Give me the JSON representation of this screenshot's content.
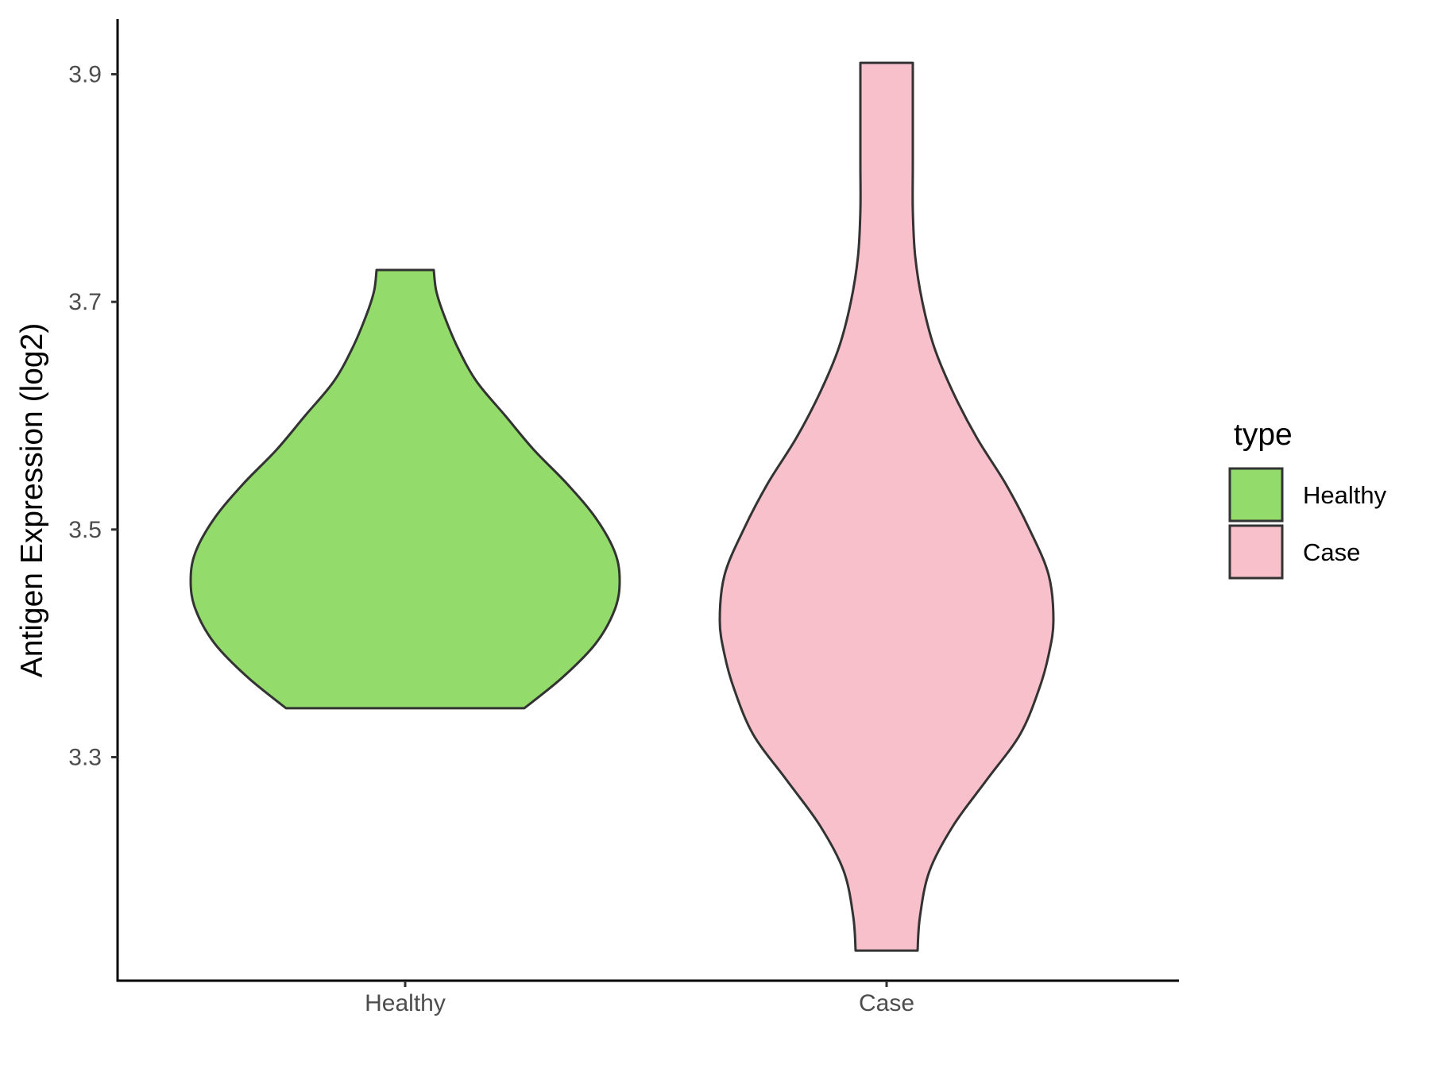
{
  "chart_data": {
    "type": "violin",
    "title": "",
    "xlabel": "",
    "ylabel": "Antigen Expression (log2)",
    "categories": [
      "Healthy",
      "Case"
    ],
    "ylim": [
      3.095,
      3.94
    ],
    "yticks": [
      3.3,
      3.5,
      3.7,
      3.9
    ],
    "ytick_labels": [
      "3.3",
      "3.5",
      "3.7",
      "3.9"
    ],
    "grid": false,
    "legend": {
      "title": "type",
      "position": "right",
      "entries": [
        {
          "label": "Healthy",
          "color": "#93dc6b"
        },
        {
          "label": "Case",
          "color": "#f8c0cb"
        }
      ]
    },
    "series": [
      {
        "category": "Healthy",
        "color": "#93dc6b",
        "y_min": 3.343,
        "y_max": 3.728,
        "density_profile": [
          [
            3.343,
            0.5
          ],
          [
            3.37,
            0.66
          ],
          [
            3.4,
            0.8
          ],
          [
            3.43,
            0.88
          ],
          [
            3.455,
            0.9
          ],
          [
            3.48,
            0.88
          ],
          [
            3.51,
            0.8
          ],
          [
            3.54,
            0.68
          ],
          [
            3.57,
            0.54
          ],
          [
            3.6,
            0.42
          ],
          [
            3.63,
            0.3
          ],
          [
            3.66,
            0.22
          ],
          [
            3.69,
            0.16
          ],
          [
            3.71,
            0.13
          ],
          [
            3.728,
            0.12
          ]
        ]
      },
      {
        "category": "Case",
        "color": "#f8c0cb",
        "y_min": 3.13,
        "y_max": 3.91,
        "density_profile": [
          [
            3.13,
            0.13
          ],
          [
            3.16,
            0.14
          ],
          [
            3.2,
            0.18
          ],
          [
            3.24,
            0.28
          ],
          [
            3.28,
            0.42
          ],
          [
            3.32,
            0.56
          ],
          [
            3.36,
            0.64
          ],
          [
            3.39,
            0.68
          ],
          [
            3.42,
            0.7
          ],
          [
            3.46,
            0.68
          ],
          [
            3.5,
            0.6
          ],
          [
            3.54,
            0.5
          ],
          [
            3.58,
            0.38
          ],
          [
            3.62,
            0.28
          ],
          [
            3.66,
            0.2
          ],
          [
            3.7,
            0.15
          ],
          [
            3.74,
            0.12
          ],
          [
            3.78,
            0.11
          ],
          [
            3.82,
            0.11
          ],
          [
            3.86,
            0.11
          ],
          [
            3.91,
            0.11
          ]
        ]
      }
    ]
  }
}
